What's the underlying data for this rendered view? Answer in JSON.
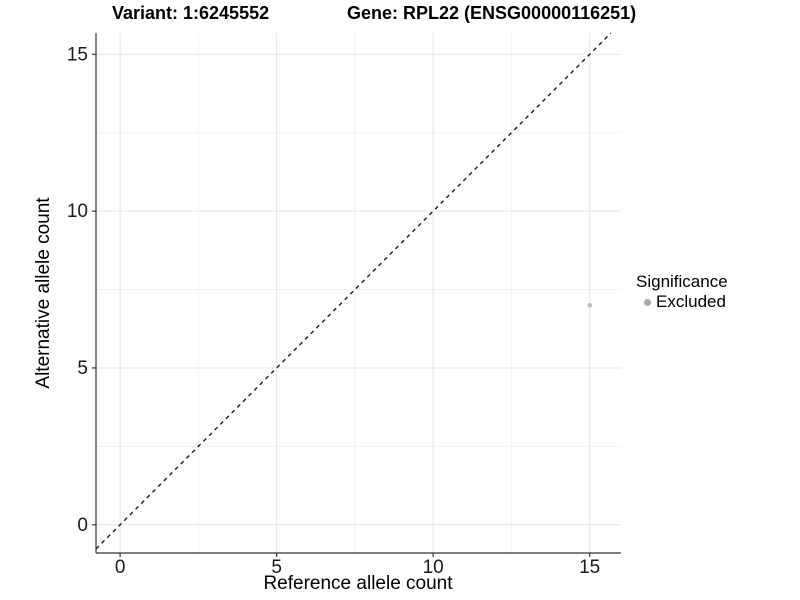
{
  "chart_data": {
    "type": "scatter",
    "title_left": "Variant: 1:6245552",
    "title_right": "Gene: RPL22 (ENSG00000116251)",
    "xlabel": "Reference allele count",
    "ylabel": "Alternative allele count",
    "x_ticks": [
      0,
      5,
      10,
      15
    ],
    "y_ticks": [
      0,
      5,
      10,
      15
    ],
    "x_minor_ticks": [
      2.5,
      7.5,
      12.5
    ],
    "y_minor_ticks": [
      2.5,
      7.5,
      12.5
    ],
    "xlim": [
      -0.77,
      16.0
    ],
    "ylim": [
      -0.9,
      15.68
    ],
    "grid": true,
    "identity_line": {
      "show": true,
      "style": "dashed",
      "color": "#1a1a1a",
      "equation": "y = x"
    },
    "series": [
      {
        "name": "Excluded",
        "color": "#bdbdbd",
        "points": [
          {
            "x": 15,
            "y": 7
          }
        ]
      }
    ],
    "legend": {
      "title": "Significance",
      "position": "right",
      "entries": [
        {
          "label": "Excluded",
          "color": "#a9a9a9"
        }
      ]
    },
    "colors": {
      "grid_major": "#e6e6e6",
      "grid_minor": "#f2f2f2",
      "axis_line": "#333333",
      "tick_text": "#1a1a1a",
      "background": "#ffffff"
    }
  }
}
